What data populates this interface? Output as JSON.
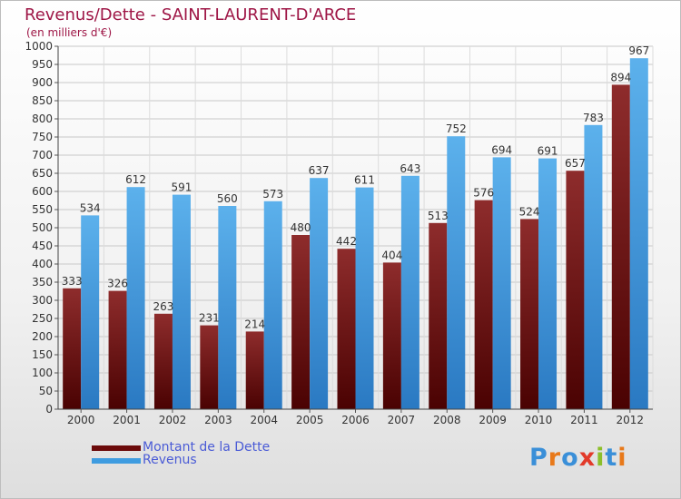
{
  "title": "Revenus/Dette - SAINT-LAURENT-D'ARCE",
  "subtitle": "(en milliers d'€)",
  "chart_data": {
    "type": "bar",
    "categories": [
      "2000",
      "2001",
      "2002",
      "2003",
      "2004",
      "2005",
      "2006",
      "2007",
      "2008",
      "2009",
      "2010",
      "2011",
      "2012"
    ],
    "series": [
      {
        "name": "Montant de la Dette",
        "values": [
          333,
          326,
          263,
          231,
          214,
          480,
          442,
          404,
          513,
          576,
          524,
          657,
          894
        ],
        "color": "#7a1010"
      },
      {
        "name": "Revenus",
        "values": [
          534,
          612,
          591,
          560,
          573,
          637,
          611,
          643,
          752,
          694,
          691,
          783,
          967
        ],
        "color": "#3f9ce0"
      }
    ],
    "ylim": [
      0,
      1000
    ],
    "ytick_step": 50,
    "grid": true,
    "legend_position": "bottom-left"
  },
  "legend": {
    "items": [
      {
        "label": "Montant de la Dette",
        "color": "#6b0a0a"
      },
      {
        "label": "Revenus",
        "color": "#3f9ce0"
      }
    ]
  },
  "logo": {
    "text": "Proxiti",
    "letter_colors": [
      "#3a8fd8",
      "#e8791a",
      "#3a8fd8",
      "#e23a2a",
      "#8cbf2a",
      "#3a8fd8",
      "#e8791a"
    ]
  }
}
